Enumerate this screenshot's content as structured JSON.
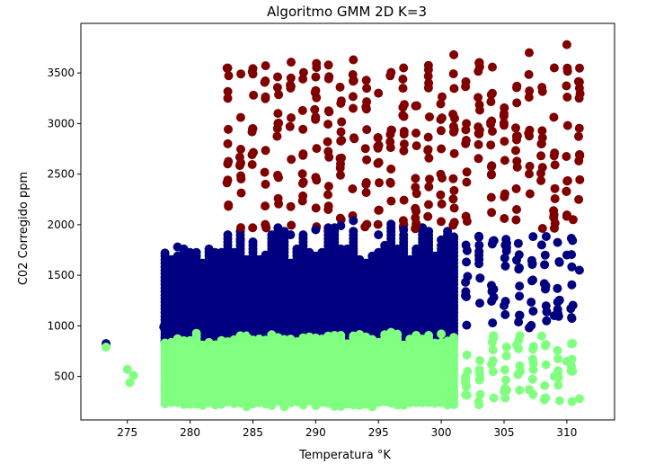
{
  "chart_data": {
    "type": "scatter",
    "title": "Algoritmo GMM 2D K=3",
    "xlabel": "Temperatura °K",
    "ylabel": "C02 Corregido ppm",
    "xlim": [
      271.3,
      313.8
    ],
    "ylim": [
      70,
      3990
    ],
    "xticks": [
      275,
      280,
      285,
      290,
      295,
      300,
      305,
      310
    ],
    "yticks": [
      500,
      1000,
      1500,
      2000,
      2500,
      3000,
      3500
    ],
    "grid": false,
    "legend": "none",
    "clusters": [
      {
        "color": "#800000",
        "approx_x_range": [
          283,
          311.2
        ],
        "approx_y_range": [
          1950,
          3760
        ],
        "sample_points": [
          [
            283.0,
            3250
          ],
          [
            283.0,
            2800
          ],
          [
            284.0,
            2600
          ],
          [
            285.0,
            3490
          ],
          [
            285.0,
            2950
          ],
          [
            286.0,
            2400
          ],
          [
            287.0,
            3100
          ],
          [
            288.0,
            3350
          ],
          [
            289.0,
            2700
          ],
          [
            290.0,
            3460
          ],
          [
            291.0,
            2150
          ],
          [
            292.0,
            3200
          ],
          [
            293.0,
            3630
          ],
          [
            294.0,
            2400
          ],
          [
            295.0,
            3300
          ],
          [
            296.0,
            2550
          ],
          [
            297.0,
            3550
          ],
          [
            298.0,
            2000
          ],
          [
            299.0,
            3400
          ],
          [
            300.0,
            2750
          ],
          [
            301.0,
            3680
          ],
          [
            302.0,
            3000
          ],
          [
            303.0,
            3600
          ],
          [
            304.0,
            2500
          ],
          [
            305.0,
            3100
          ],
          [
            306.0,
            2150
          ],
          [
            307.0,
            3700
          ],
          [
            308.0,
            2800
          ],
          [
            309.0,
            3550
          ],
          [
            310.0,
            3780
          ],
          [
            310.5,
            2050
          ],
          [
            311.0,
            3350
          ]
        ]
      },
      {
        "color": "#000080",
        "approx_x_range": [
          273.3,
          311.2
        ],
        "approx_y_range": [
          840,
          2050
        ],
        "sample_points": [
          [
            273.3,
            825
          ],
          [
            277.9,
            990
          ],
          [
            278.0,
            1720
          ],
          [
            279.0,
            1780
          ],
          [
            280.0,
            1700
          ],
          [
            283.0,
            1650
          ],
          [
            284.0,
            1850
          ],
          [
            285.0,
            950
          ],
          [
            286.0,
            1700
          ],
          [
            288.0,
            1900
          ],
          [
            290.0,
            1950
          ],
          [
            292.0,
            1990
          ],
          [
            293.0,
            2040
          ],
          [
            295.0,
            1900
          ],
          [
            297.0,
            1950
          ],
          [
            300.0,
            1850
          ],
          [
            301.0,
            1880
          ],
          [
            303.0,
            1700
          ],
          [
            304.0,
            1400
          ],
          [
            305.0,
            1200
          ],
          [
            306.0,
            1650
          ],
          [
            307.0,
            980
          ],
          [
            308.0,
            1800
          ],
          [
            309.0,
            1100
          ],
          [
            310.0,
            1700
          ],
          [
            311.0,
            1550
          ]
        ]
      },
      {
        "color": "#80ff80",
        "approx_x_range": [
          273.3,
          311.2
        ],
        "approx_y_range": [
          200,
          950
        ],
        "sample_points": [
          [
            273.3,
            790
          ],
          [
            275.0,
            570
          ],
          [
            275.2,
            440
          ],
          [
            275.5,
            510
          ],
          [
            278.0,
            820
          ],
          [
            278.0,
            230
          ],
          [
            280.0,
            300
          ],
          [
            282.0,
            400
          ],
          [
            285.0,
            860
          ],
          [
            288.0,
            250
          ],
          [
            290.0,
            880
          ],
          [
            293.0,
            900
          ],
          [
            295.0,
            540
          ],
          [
            298.0,
            260
          ],
          [
            300.0,
            920
          ],
          [
            302.0,
            400
          ],
          [
            303.0,
            220
          ],
          [
            304.0,
            620
          ],
          [
            305.0,
            350
          ],
          [
            306.0,
            810
          ],
          [
            307.0,
            370
          ],
          [
            308.0,
            900
          ],
          [
            309.0,
            500
          ],
          [
            310.0,
            650
          ],
          [
            311.0,
            280
          ]
        ]
      }
    ]
  }
}
